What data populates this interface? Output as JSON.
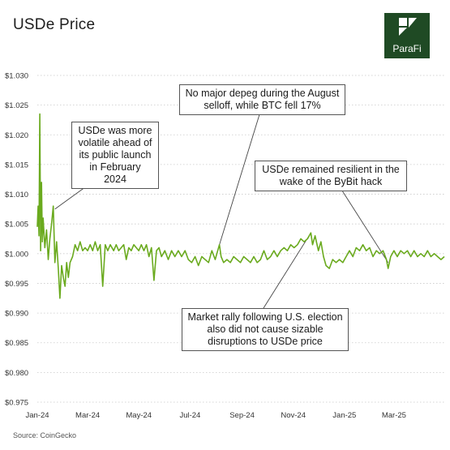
{
  "header": {
    "title": "USDe Price",
    "logo_text": "ParaFi"
  },
  "source": "Source: CoinGecko",
  "annotations": {
    "volatile": "USDe was more volatile ahead of its public launch in February 2024",
    "august": "No major depeg during the August selloff, while BTC fell 17%",
    "bybit": "USDe remained resilient in the wake of the ByBit hack",
    "election": "Market rally following U.S. election also did not cause sizable disruptions to USDe price"
  },
  "colors": {
    "line": "#6aaa1e",
    "grid": "#c9c9c9",
    "logo_bg": "#1f4a24"
  },
  "chart_data": {
    "type": "line",
    "title": "USDe Price",
    "xlabel": "",
    "ylabel": "",
    "x_tick_labels": [
      "Jan-24",
      "Mar-24",
      "May-24",
      "Jul-24",
      "Sep-24",
      "Nov-24",
      "Jan-25",
      "Mar-25"
    ],
    "y_tick_labels": [
      "$0.975",
      "$0.980",
      "$0.985",
      "$0.990",
      "$0.995",
      "$1.000",
      "$1.005",
      "$1.010",
      "$1.015",
      "$1.020",
      "$1.025",
      "$1.030"
    ],
    "ylim": [
      0.975,
      1.03
    ],
    "xlim": [
      "2024-01-01",
      "2025-04-30"
    ],
    "grid": "horizontal-dotted",
    "series": [
      {
        "values": [
          [
            "2024-01-01",
            1.0045
          ],
          [
            "2024-01-02",
            1.008
          ],
          [
            "2024-01-03",
            1.003
          ],
          [
            "2024-01-04",
            1.0235
          ],
          [
            "2024-01-05",
            1.0005
          ],
          [
            "2024-01-06",
            1.012
          ],
          [
            "2024-01-07",
            1.002
          ],
          [
            "2024-01-08",
            1.006
          ],
          [
            "2024-01-10",
            1.001
          ],
          [
            "2024-01-12",
            1.004
          ],
          [
            "2024-01-14",
            0.999
          ],
          [
            "2024-01-16",
            1.0025
          ],
          [
            "2024-01-18",
            1.005
          ],
          [
            "2024-01-20",
            1.008
          ],
          [
            "2024-01-22",
            0.9985
          ],
          [
            "2024-01-24",
            1.002
          ],
          [
            "2024-01-26",
            0.9975
          ],
          [
            "2024-01-28",
            0.9925
          ],
          [
            "2024-01-30",
            0.998
          ],
          [
            "2024-02-01",
            0.996
          ],
          [
            "2024-02-03",
            0.9945
          ],
          [
            "2024-02-05",
            0.9985
          ],
          [
            "2024-02-07",
            0.996
          ],
          [
            "2024-02-09",
            0.9985
          ],
          [
            "2024-02-12",
            0.9995
          ],
          [
            "2024-02-15",
            1.0015
          ],
          [
            "2024-02-18",
            1.0005
          ],
          [
            "2024-02-21",
            1.002
          ],
          [
            "2024-02-24",
            1.0005
          ],
          [
            "2024-02-27",
            1.001
          ],
          [
            "2024-03-01",
            1.0005
          ],
          [
            "2024-03-04",
            1.0015
          ],
          [
            "2024-03-07",
            1.0005
          ],
          [
            "2024-03-10",
            1.002
          ],
          [
            "2024-03-13",
            1.0005
          ],
          [
            "2024-03-16",
            1.0015
          ],
          [
            "2024-03-19",
            0.9945
          ],
          [
            "2024-03-22",
            1.0015
          ],
          [
            "2024-03-25",
            1.0005
          ],
          [
            "2024-03-28",
            1.0015
          ],
          [
            "2024-04-01",
            1.0005
          ],
          [
            "2024-04-04",
            1.0015
          ],
          [
            "2024-04-07",
            1.0005
          ],
          [
            "2024-04-10",
            1.001
          ],
          [
            "2024-04-13",
            1.0015
          ],
          [
            "2024-04-16",
            0.999
          ],
          [
            "2024-04-19",
            1.001
          ],
          [
            "2024-04-22",
            1.0005
          ],
          [
            "2024-04-25",
            1.0015
          ],
          [
            "2024-04-28",
            1.001
          ],
          [
            "2024-05-01",
            1.0005
          ],
          [
            "2024-05-04",
            1.0015
          ],
          [
            "2024-05-07",
            1.0005
          ],
          [
            "2024-05-10",
            1.0015
          ],
          [
            "2024-05-13",
            0.9995
          ],
          [
            "2024-05-16",
            1.001
          ],
          [
            "2024-05-19",
            0.9955
          ],
          [
            "2024-05-22",
            1.0005
          ],
          [
            "2024-05-25",
            1.001
          ],
          [
            "2024-05-28",
            0.9995
          ],
          [
            "2024-06-01",
            1.0005
          ],
          [
            "2024-06-05",
            0.999
          ],
          [
            "2024-06-09",
            1.0005
          ],
          [
            "2024-06-13",
            0.9995
          ],
          [
            "2024-06-17",
            1.0005
          ],
          [
            "2024-06-21",
            0.9995
          ],
          [
            "2024-06-25",
            1.0005
          ],
          [
            "2024-06-29",
            0.999
          ],
          [
            "2024-07-03",
            0.9985
          ],
          [
            "2024-07-07",
            0.9995
          ],
          [
            "2024-07-11",
            0.998
          ],
          [
            "2024-07-15",
            0.9995
          ],
          [
            "2024-07-19",
            0.999
          ],
          [
            "2024-07-23",
            0.9985
          ],
          [
            "2024-07-27",
            1.0005
          ],
          [
            "2024-07-31",
            0.999
          ],
          [
            "2024-08-03",
            1.0005
          ],
          [
            "2024-08-05",
            1.0015
          ],
          [
            "2024-08-07",
            0.9995
          ],
          [
            "2024-08-10",
            0.9985
          ],
          [
            "2024-08-14",
            0.999
          ],
          [
            "2024-08-18",
            0.9985
          ],
          [
            "2024-08-22",
            0.9995
          ],
          [
            "2024-08-26",
            0.999
          ],
          [
            "2024-08-30",
            0.9985
          ],
          [
            "2024-09-03",
            0.9995
          ],
          [
            "2024-09-07",
            0.999
          ],
          [
            "2024-09-11",
            0.9985
          ],
          [
            "2024-09-15",
            0.9995
          ],
          [
            "2024-09-19",
            0.9985
          ],
          [
            "2024-09-23",
            0.999
          ],
          [
            "2024-09-27",
            1.0005
          ],
          [
            "2024-10-01",
            0.999
          ],
          [
            "2024-10-05",
            0.9995
          ],
          [
            "2024-10-09",
            1.0005
          ],
          [
            "2024-10-13",
            0.9995
          ],
          [
            "2024-10-17",
            1.0005
          ],
          [
            "2024-10-21",
            1.001
          ],
          [
            "2024-10-25",
            1.0005
          ],
          [
            "2024-10-29",
            1.0015
          ],
          [
            "2024-11-02",
            1.001
          ],
          [
            "2024-11-06",
            1.0015
          ],
          [
            "2024-11-10",
            1.0025
          ],
          [
            "2024-11-14",
            1.002
          ],
          [
            "2024-11-18",
            1.0025
          ],
          [
            "2024-11-22",
            1.0035
          ],
          [
            "2024-11-24",
            1.0015
          ],
          [
            "2024-11-27",
            1.003
          ],
          [
            "2024-12-01",
            1.0005
          ],
          [
            "2024-12-04",
            1.002
          ],
          [
            "2024-12-07",
            0.9995
          ],
          [
            "2024-12-10",
            0.998
          ],
          [
            "2024-12-14",
            0.9975
          ],
          [
            "2024-12-18",
            0.999
          ],
          [
            "2024-12-22",
            0.9985
          ],
          [
            "2024-12-26",
            0.999
          ],
          [
            "2024-12-30",
            0.9985
          ],
          [
            "2025-01-03",
            0.9995
          ],
          [
            "2025-01-07",
            1.0005
          ],
          [
            "2025-01-11",
            0.9995
          ],
          [
            "2025-01-15",
            1.001
          ],
          [
            "2025-01-19",
            1.0005
          ],
          [
            "2025-01-23",
            1.0015
          ],
          [
            "2025-01-27",
            1.0005
          ],
          [
            "2025-01-31",
            1.001
          ],
          [
            "2025-02-04",
            0.9995
          ],
          [
            "2025-02-08",
            1.0005
          ],
          [
            "2025-02-12",
            1.0
          ],
          [
            "2025-02-16",
            1.0005
          ],
          [
            "2025-02-20",
            0.999
          ],
          [
            "2025-02-22",
            0.9975
          ],
          [
            "2025-02-25",
            0.9995
          ],
          [
            "2025-03-01",
            1.0005
          ],
          [
            "2025-03-05",
            0.9995
          ],
          [
            "2025-03-09",
            1.0005
          ],
          [
            "2025-03-13",
            1.0
          ],
          [
            "2025-03-17",
            1.0005
          ],
          [
            "2025-03-21",
            0.9995
          ],
          [
            "2025-03-25",
            1.0005
          ],
          [
            "2025-03-29",
            0.9995
          ],
          [
            "2025-04-02",
            1.0
          ],
          [
            "2025-04-06",
            0.9995
          ],
          [
            "2025-04-10",
            1.0005
          ],
          [
            "2025-04-14",
            0.9995
          ],
          [
            "2025-04-18",
            1.0
          ],
          [
            "2025-04-22",
            0.9995
          ],
          [
            "2025-04-26",
            0.999
          ],
          [
            "2025-04-30",
            0.9995
          ]
        ]
      }
    ]
  }
}
